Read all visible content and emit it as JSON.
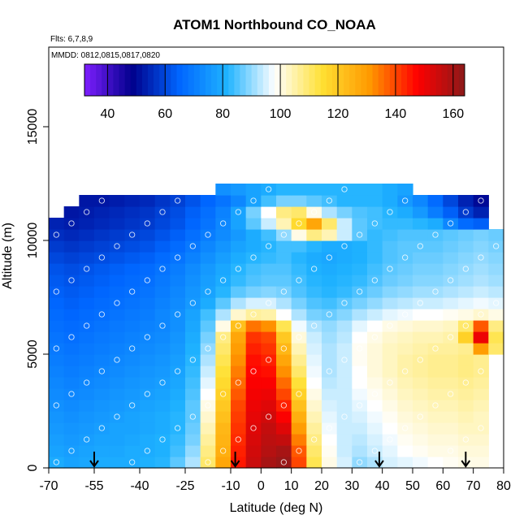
{
  "chart_data": {
    "type": "heatmap",
    "title": "ATOM1 Northbound CO_NOAA",
    "flights_label": "Flts: 6,7,8,9",
    "dates_label": "MMDD: 0812,0815,0817,0820",
    "xlabel": "Latitude (deg N)",
    "ylabel": "Altitude (m)",
    "xlim": [
      -70,
      80
    ],
    "ylim": [
      0,
      18500
    ],
    "x_ticks": [
      -70,
      -55,
      -40,
      -25,
      -10,
      0,
      10,
      20,
      30,
      40,
      50,
      60,
      70,
      80
    ],
    "x_tick_labels": [
      "-70",
      "-55",
      "-40",
      "-25",
      "-10",
      "0",
      "10",
      "20",
      "30",
      "40",
      "50",
      "60",
      "70",
      "80"
    ],
    "y_ticks": [
      0,
      5000,
      10000,
      15000
    ],
    "y_tick_labels": [
      "0",
      "5000",
      "10000",
      "15000"
    ],
    "colorbar": {
      "range": [
        32,
        164
      ],
      "ticks": [
        40,
        60,
        80,
        100,
        120,
        140,
        160
      ],
      "tick_labels": [
        "40",
        "60",
        "80",
        "100",
        "120",
        "140",
        "160"
      ],
      "colors": [
        "#7f1fff",
        "#00008b",
        "#0066ff",
        "#1fb3ff",
        "#ffffff",
        "#ffe033",
        "#ff9900",
        "#ff0000",
        "#8b1a1a"
      ]
    },
    "arrow_latitudes": [
      -55,
      -8.5,
      39,
      67.5
    ],
    "lat_bins": [
      -67.5,
      -62.5,
      -57.5,
      -52.5,
      -47.5,
      -42.5,
      -37.5,
      -32.5,
      -27.5,
      -22.5,
      -17.5,
      -12.5,
      -7.5,
      -2.5,
      2.5,
      7.5,
      12.5,
      17.5,
      22.5,
      27.5,
      32.5,
      37.5,
      42.5,
      47.5,
      52.5,
      57.5,
      62.5,
      67.5,
      72.5,
      77.5
    ],
    "alt_bins": [
      250,
      750,
      1250,
      1750,
      2250,
      2750,
      3250,
      3750,
      4250,
      4750,
      5250,
      5750,
      6250,
      6750,
      7250,
      7750,
      8250,
      8750,
      9250,
      9750,
      10250,
      10750,
      11250,
      11750,
      12250
    ],
    "co_values": [
      [
        80,
        78,
        79,
        80,
        80,
        80,
        81,
        82,
        86,
        92,
        110,
        128,
        145,
        155,
        160,
        162,
        140,
        112,
        100,
        95,
        90,
        92,
        95,
        96,
        97,
        98,
        99,
        100,
        100,
        null
      ],
      [
        78,
        77,
        78,
        79,
        79,
        80,
        80,
        81,
        84,
        90,
        108,
        126,
        144,
        154,
        158,
        160,
        138,
        110,
        99,
        94,
        92,
        94,
        96,
        98,
        99,
        100,
        100,
        101,
        101,
        null
      ],
      [
        77,
        76,
        77,
        78,
        78,
        79,
        80,
        81,
        83,
        88,
        106,
        125,
        143,
        153,
        157,
        156,
        134,
        108,
        98,
        94,
        93,
        95,
        97,
        99,
        100,
        101,
        101,
        102,
        102,
        null
      ],
      [
        76,
        75,
        76,
        77,
        78,
        78,
        79,
        80,
        82,
        87,
        104,
        124,
        142,
        152,
        156,
        152,
        130,
        106,
        97,
        94,
        94,
        96,
        98,
        100,
        101,
        102,
        102,
        103,
        103,
        null
      ],
      [
        75,
        74,
        75,
        76,
        77,
        78,
        79,
        80,
        82,
        86,
        102,
        122,
        141,
        151,
        154,
        148,
        126,
        104,
        96,
        94,
        95,
        97,
        99,
        101,
        102,
        103,
        103,
        104,
        103,
        null
      ],
      [
        74,
        73,
        74,
        75,
        76,
        77,
        78,
        79,
        81,
        86,
        100,
        120,
        140,
        150,
        152,
        144,
        122,
        102,
        95,
        94,
        96,
        98,
        100,
        102,
        103,
        104,
        104,
        105,
        104,
        null
      ],
      [
        73,
        72,
        73,
        74,
        75,
        76,
        77,
        78,
        80,
        85,
        98,
        118,
        138,
        149,
        150,
        140,
        118,
        100,
        94,
        94,
        97,
        99,
        101,
        103,
        104,
        105,
        105,
        106,
        105,
        null
      ],
      [
        72,
        71,
        72,
        73,
        74,
        75,
        76,
        77,
        79,
        84,
        96,
        116,
        136,
        148,
        148,
        136,
        114,
        98,
        93,
        94,
        98,
        100,
        102,
        104,
        105,
        106,
        106,
        107,
        106,
        null
      ],
      [
        71,
        70,
        71,
        72,
        73,
        74,
        75,
        76,
        78,
        83,
        94,
        114,
        134,
        147,
        146,
        132,
        110,
        97,
        92,
        94,
        98,
        101,
        103,
        105,
        106,
        107,
        107,
        108,
        107,
        null
      ],
      [
        70,
        69,
        70,
        71,
        72,
        73,
        74,
        75,
        77,
        82,
        92,
        112,
        132,
        146,
        144,
        128,
        107,
        96,
        92,
        94,
        99,
        101,
        103,
        105,
        106,
        107,
        107,
        108,
        107,
        null
      ],
      [
        69,
        68,
        69,
        70,
        71,
        72,
        73,
        74,
        76,
        81,
        90,
        110,
        130,
        144,
        142,
        124,
        104,
        95,
        92,
        94,
        99,
        101,
        103,
        104,
        105,
        106,
        106,
        107,
        130,
        110
      ],
      [
        68,
        67,
        68,
        69,
        70,
        71,
        72,
        73,
        75,
        80,
        88,
        108,
        128,
        142,
        140,
        120,
        101,
        94,
        91,
        93,
        98,
        100,
        102,
        103,
        104,
        104,
        105,
        118,
        150,
        112
      ],
      [
        67,
        66,
        67,
        68,
        69,
        70,
        71,
        72,
        74,
        79,
        86,
        100,
        122,
        135,
        132,
        112,
        97,
        92,
        90,
        92,
        96,
        98,
        100,
        101,
        102,
        102,
        103,
        110,
        138,
        108
      ],
      [
        66,
        65,
        66,
        67,
        68,
        69,
        70,
        72,
        74,
        78,
        84,
        92,
        102,
        106,
        105,
        98,
        92,
        88,
        87,
        89,
        92,
        94,
        96,
        97,
        98,
        98,
        99,
        100,
        102,
        100
      ],
      [
        65,
        64,
        65,
        66,
        67,
        68,
        69,
        71,
        73,
        76,
        80,
        86,
        92,
        95,
        95,
        92,
        88,
        85,
        84,
        86,
        88,
        90,
        92,
        93,
        94,
        94,
        95,
        96,
        97,
        96
      ],
      [
        64,
        63,
        64,
        65,
        66,
        67,
        68,
        70,
        72,
        75,
        78,
        82,
        86,
        88,
        89,
        88,
        85,
        83,
        82,
        83,
        85,
        87,
        89,
        90,
        91,
        91,
        92,
        93,
        94,
        93
      ],
      [
        63,
        62,
        63,
        64,
        65,
        66,
        67,
        69,
        71,
        74,
        77,
        80,
        83,
        85,
        86,
        86,
        84,
        82,
        81,
        82,
        83,
        85,
        87,
        88,
        89,
        89,
        90,
        91,
        92,
        91
      ],
      [
        62,
        61,
        62,
        63,
        64,
        65,
        66,
        68,
        70,
        73,
        76,
        79,
        82,
        84,
        85,
        85,
        83,
        81,
        80,
        81,
        82,
        84,
        86,
        87,
        88,
        88,
        89,
        90,
        91,
        90
      ],
      [
        60,
        59,
        60,
        61,
        62,
        63,
        64,
        66,
        68,
        71,
        74,
        77,
        80,
        82,
        83,
        84,
        82,
        80,
        79,
        80,
        81,
        83,
        85,
        86,
        87,
        87,
        88,
        89,
        90,
        89
      ],
      [
        58,
        57,
        58,
        59,
        60,
        61,
        62,
        64,
        66,
        69,
        72,
        75,
        78,
        80,
        82,
        84,
        84,
        82,
        80,
        80,
        81,
        83,
        85,
        86,
        86,
        86,
        87,
        88,
        89,
        88
      ],
      [
        56,
        55,
        56,
        57,
        58,
        59,
        60,
        62,
        64,
        67,
        70,
        73,
        76,
        80,
        84,
        90,
        100,
        108,
        104,
        94,
        86,
        83,
        84,
        85,
        85,
        85,
        86,
        87,
        88,
        87
      ],
      [
        54,
        53,
        54,
        55,
        56,
        57,
        58,
        60,
        62,
        65,
        68,
        72,
        78,
        86,
        94,
        104,
        116,
        128,
        110,
        94,
        86,
        84,
        83,
        83,
        82,
        80,
        72,
        66,
        64,
        null
      ],
      [
        null,
        52,
        53,
        54,
        55,
        56,
        57,
        59,
        61,
        64,
        67,
        71,
        78,
        88,
        98,
        108,
        110,
        100,
        92,
        88,
        85,
        84,
        82,
        80,
        76,
        70,
        64,
        58,
        54,
        null
      ],
      [
        null,
        null,
        52,
        52,
        53,
        54,
        55,
        57,
        59,
        62,
        65,
        68,
        72,
        78,
        84,
        88,
        88,
        86,
        84,
        82,
        82,
        82,
        80,
        76,
        72,
        66,
        60,
        54,
        50,
        null
      ],
      [
        null,
        null,
        null,
        null,
        null,
        null,
        null,
        null,
        null,
        null,
        null,
        74,
        76,
        78,
        80,
        82,
        82,
        82,
        82,
        82,
        82,
        82,
        80,
        78,
        null,
        null,
        null,
        null,
        null,
        null
      ]
    ]
  }
}
